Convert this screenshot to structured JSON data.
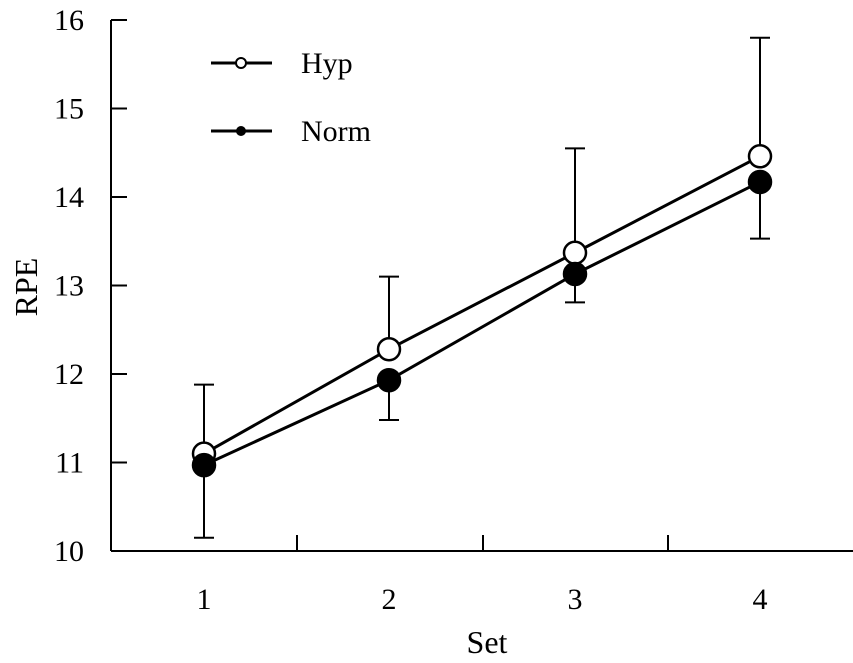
{
  "chart_data": {
    "type": "line",
    "title": "",
    "xlabel": "Set",
    "ylabel": "RPE",
    "categories": [
      "1",
      "2",
      "3",
      "4"
    ],
    "x": [
      1,
      2,
      3,
      4
    ],
    "ylim": [
      10,
      16
    ],
    "yticks": [
      "10",
      "11",
      "12",
      "13",
      "14",
      "15",
      "16"
    ],
    "grid": false,
    "legend_placement": "top-left",
    "series": [
      {
        "name": "Hyp",
        "marker": "open-circle",
        "values": [
          11.1,
          12.28,
          13.37,
          14.46
        ],
        "error_upper": [
          11.88,
          13.1,
          14.55,
          15.8
        ]
      },
      {
        "name": "Norm",
        "marker": "filled-circle",
        "values": [
          10.97,
          11.93,
          13.13,
          14.17
        ],
        "error_lower": [
          10.15,
          11.48,
          12.81,
          13.53
        ]
      }
    ],
    "colors": {
      "line": "#000000",
      "open_fill": "#ffffff",
      "filled": "#000000"
    }
  }
}
